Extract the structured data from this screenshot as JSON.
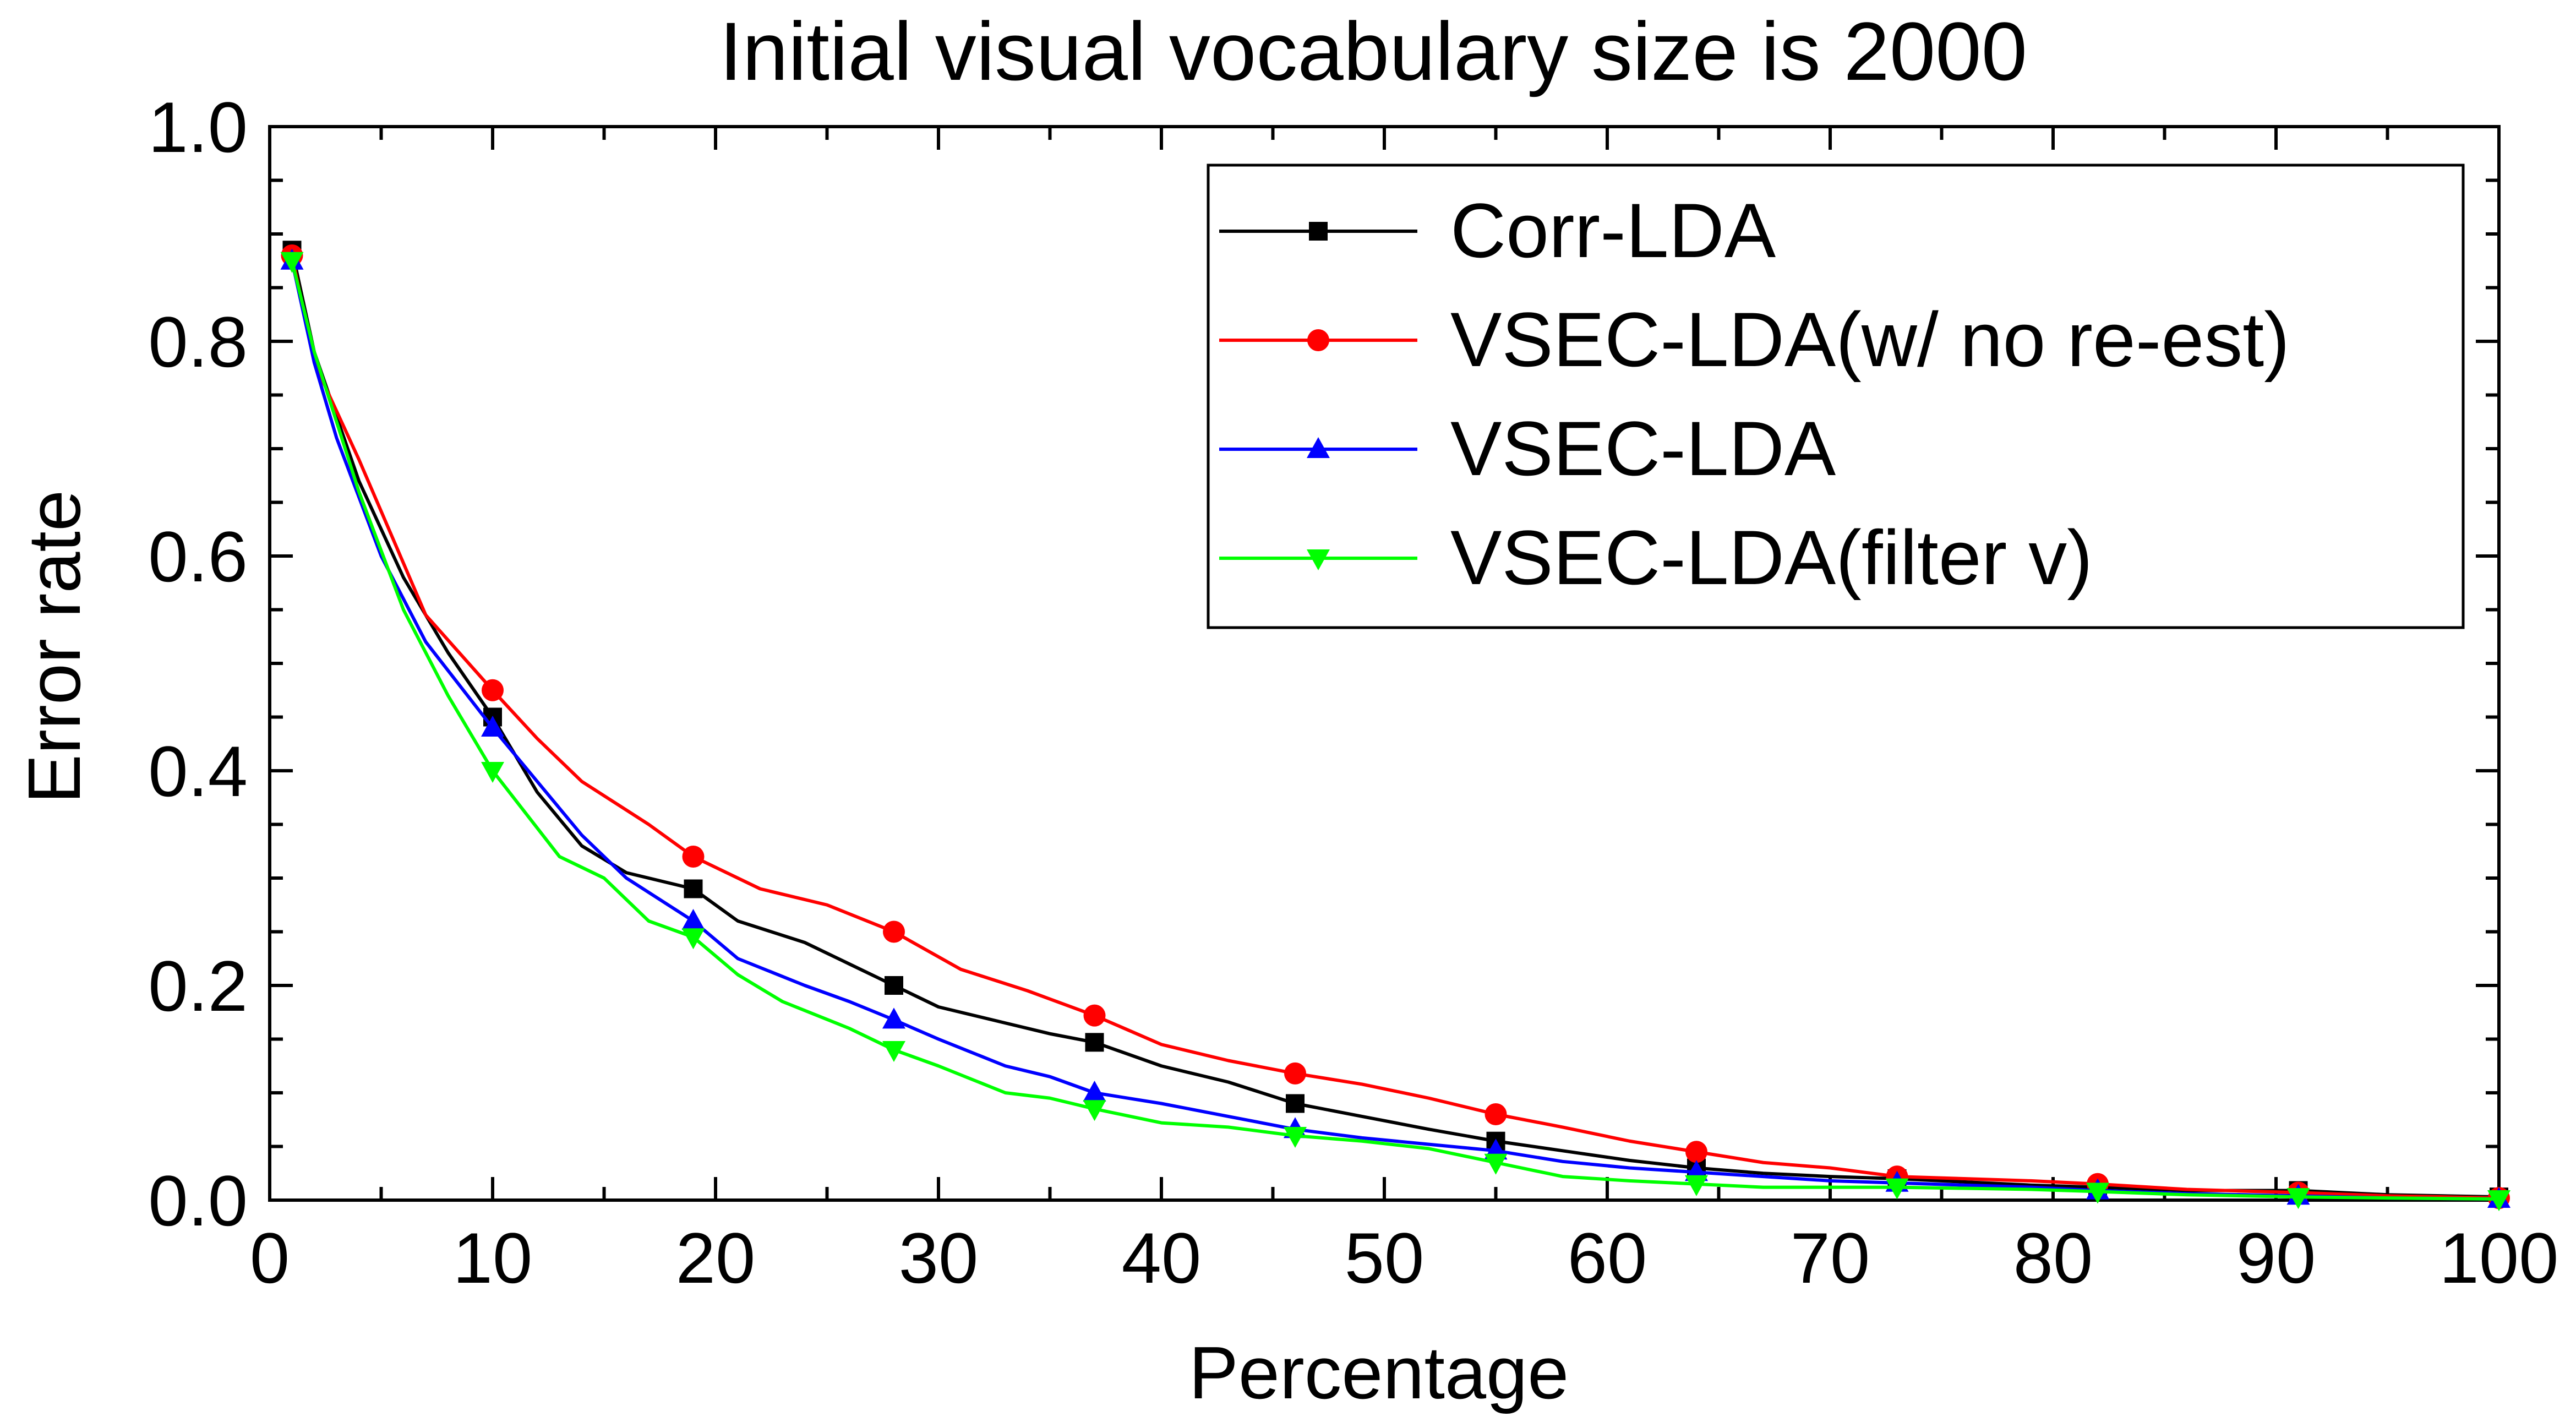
{
  "chart_data": {
    "type": "line",
    "title": "Initial visual vocabulary size is 2000",
    "xlabel": "Percentage",
    "ylabel": "Error rate",
    "xlim": [
      0,
      100
    ],
    "ylim": [
      0,
      1.0
    ],
    "xticks": [
      0,
      10,
      20,
      30,
      40,
      50,
      60,
      70,
      80,
      90,
      100
    ],
    "xtick_labels": [
      "0",
      "10",
      "20",
      "30",
      "40",
      "50",
      "60",
      "70",
      "80",
      "90",
      "100"
    ],
    "yticks": [
      0,
      0.2,
      0.4,
      0.6,
      0.8,
      1.0
    ],
    "ytick_labels": [
      "0.0",
      "0.2",
      "0.4",
      "0.6",
      "0.8",
      "1.0"
    ],
    "grid": false,
    "legend_position": "top-right",
    "series": [
      {
        "name": "Corr-LDA",
        "color": "#000000",
        "marker": "square",
        "x": [
          1,
          2,
          4,
          6,
          8,
          10,
          12,
          14,
          16,
          19,
          21,
          24,
          26,
          28,
          30,
          33,
          35,
          37,
          40,
          43,
          46,
          49,
          52,
          55,
          58,
          61,
          64,
          67,
          70,
          73,
          76,
          79,
          82,
          86,
          91,
          95,
          100
        ],
        "y": [
          0.885,
          0.79,
          0.67,
          0.58,
          0.51,
          0.45,
          0.38,
          0.33,
          0.305,
          0.29,
          0.26,
          0.24,
          0.22,
          0.2,
          0.18,
          0.165,
          0.155,
          0.147,
          0.125,
          0.11,
          0.09,
          0.078,
          0.066,
          0.055,
          0.046,
          0.037,
          0.03,
          0.025,
          0.022,
          0.02,
          0.017,
          0.014,
          0.012,
          0.009,
          0.009,
          0.005,
          0.003
        ],
        "marker_x": [
          1,
          10,
          19,
          28,
          37,
          46,
          55,
          64,
          73,
          82,
          91,
          100
        ],
        "marker_y": [
          0.885,
          0.45,
          0.29,
          0.2,
          0.147,
          0.09,
          0.055,
          0.03,
          0.02,
          0.012,
          0.009,
          0.003
        ]
      },
      {
        "name": "VSEC-LDA(w/ no re-est)",
        "color": "#ff0000",
        "marker": "circle",
        "x": [
          1,
          2,
          4,
          7,
          10,
          12,
          14,
          17,
          19,
          22,
          25,
          28,
          31,
          34,
          37,
          40,
          43,
          46,
          49,
          52,
          55,
          58,
          61,
          64,
          67,
          70,
          73,
          76,
          79,
          82,
          86,
          91,
          95,
          100
        ],
        "y": [
          0.88,
          0.78,
          0.69,
          0.545,
          0.475,
          0.43,
          0.39,
          0.35,
          0.32,
          0.29,
          0.275,
          0.25,
          0.215,
          0.195,
          0.172,
          0.145,
          0.13,
          0.118,
          0.108,
          0.095,
          0.08,
          0.068,
          0.055,
          0.045,
          0.035,
          0.03,
          0.022,
          0.02,
          0.018,
          0.015,
          0.01,
          0.007,
          0.004,
          0.002
        ],
        "marker_x": [
          1,
          10,
          19,
          28,
          37,
          46,
          55,
          64,
          73,
          82,
          91,
          100
        ],
        "marker_y": [
          0.88,
          0.475,
          0.32,
          0.25,
          0.172,
          0.118,
          0.08,
          0.045,
          0.022,
          0.015,
          0.007,
          0.002
        ]
      },
      {
        "name": "VSEC-LDA",
        "color": "#0000ff",
        "marker": "triangle-up",
        "x": [
          1,
          2,
          3,
          5,
          7,
          10,
          12,
          14,
          16,
          19,
          21,
          24,
          26,
          28,
          30,
          33,
          35,
          37,
          40,
          43,
          46,
          49,
          52,
          55,
          58,
          61,
          64,
          67,
          70,
          73,
          76,
          79,
          82,
          86,
          91,
          95,
          100
        ],
        "y": [
          0.875,
          0.78,
          0.71,
          0.6,
          0.52,
          0.44,
          0.39,
          0.34,
          0.3,
          0.26,
          0.225,
          0.2,
          0.185,
          0.168,
          0.15,
          0.125,
          0.115,
          0.1,
          0.09,
          0.078,
          0.066,
          0.058,
          0.052,
          0.046,
          0.036,
          0.03,
          0.026,
          0.022,
          0.018,
          0.016,
          0.014,
          0.012,
          0.009,
          0.006,
          0.004,
          0.002,
          0.001
        ],
        "marker_x": [
          1,
          10,
          19,
          28,
          37,
          46,
          55,
          64,
          73,
          82,
          91,
          100
        ],
        "marker_y": [
          0.875,
          0.44,
          0.26,
          0.168,
          0.1,
          0.066,
          0.046,
          0.026,
          0.016,
          0.009,
          0.004,
          0.001
        ]
      },
      {
        "name": "VSEC-LDA(filter v)",
        "color": "#00ff00",
        "marker": "triangle-down",
        "x": [
          1,
          2,
          4,
          6,
          8,
          10,
          13,
          15,
          17,
          19,
          21,
          23,
          26,
          28,
          30,
          33,
          35,
          37,
          40,
          43,
          46,
          49,
          52,
          55,
          58,
          61,
          64,
          67,
          70,
          73,
          76,
          79,
          82,
          86,
          91,
          95,
          100
        ],
        "y": [
          0.875,
          0.79,
          0.66,
          0.55,
          0.47,
          0.4,
          0.32,
          0.3,
          0.26,
          0.245,
          0.21,
          0.185,
          0.16,
          0.14,
          0.125,
          0.1,
          0.095,
          0.085,
          0.072,
          0.068,
          0.06,
          0.055,
          0.048,
          0.035,
          0.022,
          0.018,
          0.015,
          0.012,
          0.012,
          0.012,
          0.011,
          0.01,
          0.008,
          0.005,
          0.003,
          0.002,
          0.001
        ],
        "marker_x": [
          1,
          10,
          19,
          28,
          37,
          46,
          55,
          64,
          73,
          82,
          91,
          100
        ],
        "marker_y": [
          0.875,
          0.4,
          0.245,
          0.14,
          0.085,
          0.06,
          0.035,
          0.015,
          0.012,
          0.008,
          0.003,
          0.001
        ]
      }
    ]
  }
}
